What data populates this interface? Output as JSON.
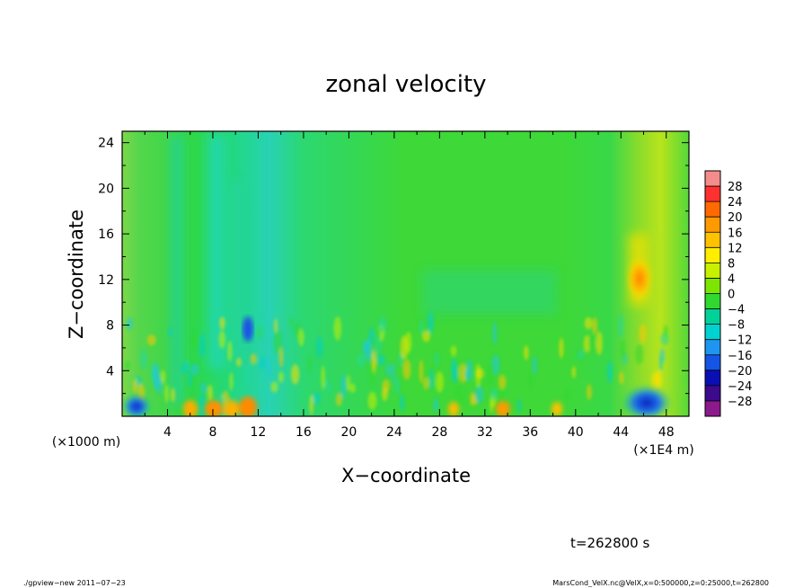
{
  "chart_data": {
    "type": "heatmap",
    "title": "zonal velocity",
    "xlabel": "X−coordinate",
    "ylabel": "Z−coordinate",
    "x_unit_left": "(×1000 m)",
    "x_unit_right": "(×1E4 m)",
    "x_range": [
      0,
      50
    ],
    "y_range": [
      0,
      25
    ],
    "x_ticks": [
      "4",
      "8",
      "12",
      "16",
      "20",
      "24",
      "28",
      "32",
      "36",
      "40",
      "44",
      "48"
    ],
    "y_ticks": [
      "4",
      "8",
      "12",
      "16",
      "20",
      "24"
    ],
    "colorbar_levels": [
      "28",
      "24",
      "20",
      "16",
      "12",
      "8",
      "4",
      "0",
      "−4",
      "−8",
      "−12",
      "−16",
      "−20",
      "−24",
      "−28"
    ],
    "colorbar_colors": [
      "#f58c8c",
      "#ff3030",
      "#ff6a00",
      "#ff9900",
      "#ffc200",
      "#ffee00",
      "#c8f000",
      "#7de600",
      "#30d830",
      "#00d29a",
      "#00d2d2",
      "#1e96f0",
      "#1455e6",
      "#0a0fb4",
      "#3c0a8c",
      "#8c1a8c"
    ],
    "time_label": "t=262800 s"
  },
  "footer": {
    "left": "./gpview−new   2011−07−23",
    "right": "MarsCond_VelX.nc@VelX,x=0:500000,z=0:25000,t=262800"
  }
}
